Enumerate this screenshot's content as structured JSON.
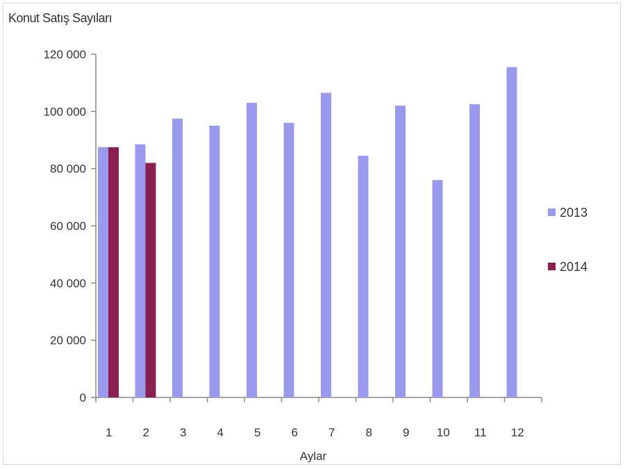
{
  "chart_data": {
    "type": "bar",
    "title": "Konut Satış Sayıları",
    "xlabel": "Aylar",
    "ylabel": "",
    "ylim": [
      0,
      120000
    ],
    "yticks": [
      0,
      20000,
      40000,
      60000,
      80000,
      100000,
      120000
    ],
    "ytick_labels": [
      "0",
      "20 000",
      "40 000",
      "60 000",
      "80 000",
      "100 000",
      "120 000"
    ],
    "categories": [
      "1",
      "2",
      "3",
      "4",
      "5",
      "6",
      "7",
      "8",
      "9",
      "10",
      "11",
      "12"
    ],
    "series": [
      {
        "name": "2013",
        "color": "#9999ee",
        "values": [
          87500,
          88500,
          97500,
          95000,
          103000,
          96000,
          106500,
          84500,
          102000,
          76000,
          102500,
          115500
        ]
      },
      {
        "name": "2014",
        "color": "#8b2050",
        "values": [
          87500,
          82000,
          null,
          null,
          null,
          null,
          null,
          null,
          null,
          null,
          null,
          null
        ]
      }
    ],
    "legend_position": "right",
    "grid": false
  }
}
